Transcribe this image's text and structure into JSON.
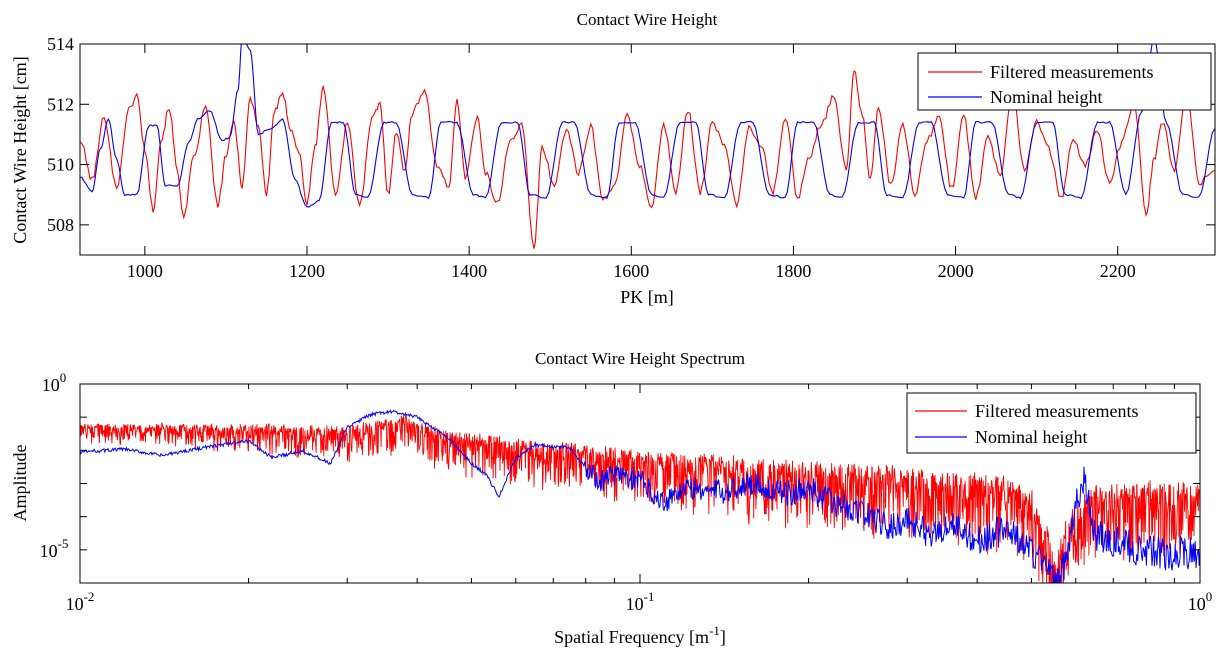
{
  "chart_data": [
    {
      "type": "line",
      "title": "Contact Wire Height",
      "xlabel": "PK [m]",
      "ylabel": "Contact Wire Height [cm]",
      "xlim": [
        920,
        2320
      ],
      "ylim": [
        507,
        514
      ],
      "xticks": [
        1000,
        1200,
        1400,
        1600,
        1800,
        2000,
        2200
      ],
      "yticks": [
        508,
        510,
        512,
        514
      ],
      "xtick_labels": [
        "1000",
        "1200",
        "1400",
        "1600",
        "1800",
        "2000",
        "2200"
      ],
      "ytick_labels": [
        "508",
        "510",
        "512",
        "514"
      ],
      "legend_position": "top-right",
      "grid": false,
      "series": [
        {
          "name": "Filtered measurements",
          "color": "#ff0000",
          "x": [
            920,
            935,
            950,
            965,
            980,
            990,
            1000,
            1010,
            1020,
            1030,
            1040,
            1048,
            1060,
            1075,
            1090,
            1100,
            1110,
            1120,
            1130,
            1140,
            1150,
            1160,
            1170,
            1180,
            1190,
            1200,
            1210,
            1220,
            1235,
            1250,
            1265,
            1280,
            1290,
            1300,
            1310,
            1320,
            1330,
            1345,
            1360,
            1375,
            1385,
            1395,
            1410,
            1420,
            1435,
            1450,
            1465,
            1480,
            1490,
            1505,
            1520,
            1535,
            1550,
            1565,
            1580,
            1595,
            1610,
            1625,
            1640,
            1655,
            1670,
            1685,
            1700,
            1715,
            1730,
            1745,
            1760,
            1775,
            1790,
            1805,
            1820,
            1835,
            1850,
            1865,
            1875,
            1885,
            1895,
            1905,
            1920,
            1935,
            1950,
            1965,
            1980,
            1995,
            2010,
            2025,
            2040,
            2055,
            2070,
            2085,
            2100,
            2115,
            2130,
            2145,
            2160,
            2175,
            2190,
            2205,
            2220,
            2235,
            2245,
            2255,
            2270,
            2285,
            2300,
            2320
          ],
          "y": [
            510.8,
            509.5,
            511.6,
            509.2,
            511.8,
            512.3,
            510.5,
            508.5,
            510.8,
            511.9,
            509.8,
            508.2,
            510.2,
            511.9,
            508.6,
            510.3,
            511.4,
            509.3,
            512.2,
            511.3,
            509.0,
            511.8,
            512.3,
            511.2,
            510.4,
            508.7,
            510.6,
            512.6,
            509.0,
            511.4,
            508.6,
            511.5,
            512.0,
            509.0,
            511.1,
            509.8,
            511.7,
            512.5,
            510.0,
            509.2,
            512.2,
            509.6,
            511.6,
            509.7,
            508.7,
            510.8,
            511.3,
            507.2,
            510.6,
            509.3,
            511.2,
            509.7,
            511.3,
            508.8,
            509.4,
            511.6,
            510.0,
            508.6,
            511.3,
            509.1,
            511.8,
            509.1,
            511.4,
            510.6,
            508.7,
            511.2,
            510.6,
            509.1,
            511.6,
            508.9,
            510.3,
            511.4,
            512.3,
            509.8,
            513.1,
            511.6,
            509.5,
            511.9,
            509.3,
            511.3,
            509.0,
            510.8,
            511.6,
            509.2,
            511.6,
            508.9,
            511.0,
            509.6,
            512.5,
            509.8,
            511.5,
            510.5,
            508.9,
            510.8,
            510.0,
            511.1,
            509.4,
            510.7,
            512.1,
            508.3,
            510.2,
            511.4,
            509.8,
            512.5,
            509.4,
            509.8
          ]
        },
        {
          "name": "Nominal height",
          "color": "#0000ff",
          "x": [
            920,
            935,
            945,
            955,
            965,
            975,
            990,
            1005,
            1015,
            1025,
            1040,
            1055,
            1065,
            1080,
            1095,
            1105,
            1115,
            1120,
            1130,
            1140,
            1155,
            1170,
            1185,
            1200,
            1215,
            1230,
            1245,
            1260,
            1275,
            1295,
            1310,
            1330,
            1350,
            1365,
            1385,
            1405,
            1420,
            1440,
            1460,
            1475,
            1495,
            1515,
            1530,
            1550,
            1570,
            1585,
            1605,
            1625,
            1640,
            1660,
            1680,
            1695,
            1715,
            1735,
            1750,
            1770,
            1790,
            1805,
            1825,
            1845,
            1860,
            1880,
            1900,
            1915,
            1935,
            1955,
            1970,
            1990,
            2010,
            2025,
            2045,
            2065,
            2080,
            2100,
            2120,
            2135,
            2155,
            2175,
            2190,
            2210,
            2230,
            2245,
            2260,
            2280,
            2300,
            2320
          ],
          "y": [
            509.6,
            509.1,
            510.5,
            511.5,
            510.2,
            509.0,
            509.0,
            511.3,
            511.3,
            509.3,
            509.3,
            510.8,
            511.5,
            511.8,
            510.8,
            510.9,
            512.5,
            514.2,
            513.8,
            511.0,
            511.2,
            511.5,
            509.5,
            508.6,
            508.8,
            511.4,
            511.4,
            509.0,
            508.9,
            511.4,
            511.4,
            509.0,
            508.9,
            511.4,
            511.4,
            509.0,
            508.9,
            511.4,
            511.4,
            509.0,
            508.9,
            511.4,
            511.4,
            509.0,
            508.9,
            511.4,
            511.4,
            509.0,
            508.9,
            511.4,
            511.4,
            509.0,
            508.9,
            511.4,
            511.4,
            509.0,
            508.9,
            511.4,
            511.4,
            509.0,
            508.9,
            511.4,
            511.4,
            509.0,
            508.9,
            511.4,
            511.4,
            509.0,
            508.9,
            511.4,
            511.4,
            509.0,
            508.9,
            511.4,
            511.4,
            509.0,
            508.9,
            511.4,
            511.4,
            509.0,
            511.8,
            514.2,
            511.4,
            509.0,
            508.9,
            511.2
          ]
        }
      ]
    },
    {
      "type": "line",
      "title": "Contact Wire Height Spectrum",
      "xlabel": "Spatial Frequency [m",
      "xlabel_superscript": "-1",
      "xlabel_suffix": "]",
      "ylabel": "Amplitude",
      "x_scale": "log",
      "y_scale": "log",
      "xlim": [
        0.01,
        1
      ],
      "ylim": [
        1e-06,
        1
      ],
      "xtick_labels": [
        {
          "value": 0.01,
          "base": "10",
          "exp": "-2"
        },
        {
          "value": 0.1,
          "base": "10",
          "exp": "-1"
        },
        {
          "value": 1,
          "base": "10",
          "exp": "0"
        }
      ],
      "ytick_labels": [
        {
          "value": 1e-05,
          "base": "10",
          "exp": "-5"
        },
        {
          "value": 1,
          "base": "10",
          "exp": "0"
        }
      ],
      "legend_position": "top-right",
      "grid": false,
      "series": [
        {
          "name": "Filtered measurements",
          "color": "#ff0000",
          "anchors_x": [
            0.01,
            0.02,
            0.03,
            0.038,
            0.045,
            0.06,
            0.08,
            0.1,
            0.15,
            0.2,
            0.3,
            0.45,
            0.5,
            0.53,
            0.55,
            0.58,
            0.65,
            0.8,
            1.0
          ],
          "anchors_log10y": [
            -1.3,
            -1.35,
            -1.45,
            -1.1,
            -1.6,
            -1.9,
            -2.1,
            -2.3,
            -2.5,
            -2.7,
            -2.9,
            -3.2,
            -3.6,
            -4.5,
            -5.7,
            -4.2,
            -3.5,
            -3.3,
            -3.4
          ],
          "noise_dex_low_f": 0.3,
          "noise_dex_high_f": 1.3
        },
        {
          "name": "Nominal height",
          "color": "#0000ff",
          "x": [
            0.01,
            0.012,
            0.014,
            0.016,
            0.02,
            0.022,
            0.025,
            0.028,
            0.03,
            0.033,
            0.036,
            0.04,
            0.043,
            0.046,
            0.05,
            0.053,
            0.056,
            0.06,
            0.065,
            0.07,
            0.075,
            0.08,
            0.085,
            0.09,
            0.1,
            0.11,
            0.12,
            0.14,
            0.16,
            0.18,
            0.2,
            0.22,
            0.25,
            0.28,
            0.3,
            0.33,
            0.36,
            0.4,
            0.45,
            0.5,
            0.54,
            0.56,
            0.58,
            0.6,
            0.62,
            0.65,
            0.7,
            0.8,
            0.9,
            1.0
          ],
          "y": [
            0.009,
            0.011,
            0.007,
            0.011,
            0.02,
            0.006,
            0.01,
            0.004,
            0.05,
            0.12,
            0.15,
            0.1,
            0.045,
            0.02,
            0.004,
            0.002,
            0.0004,
            0.006,
            0.015,
            0.013,
            0.012,
            0.003,
            0.0012,
            0.002,
            0.0014,
            0.0003,
            0.0008,
            0.0006,
            0.0012,
            0.0005,
            0.0008,
            0.0003,
            0.00015,
            5e-05,
            0.0001,
            3e-05,
            7e-05,
            2e-05,
            5e-05,
            1e-05,
            3e-06,
            1e-06,
            1e-05,
            0.0003,
            0.0015,
            3e-05,
            2e-05,
            1e-05,
            8e-06,
            1e-05
          ],
          "noise_dex": 0.35
        }
      ]
    }
  ]
}
